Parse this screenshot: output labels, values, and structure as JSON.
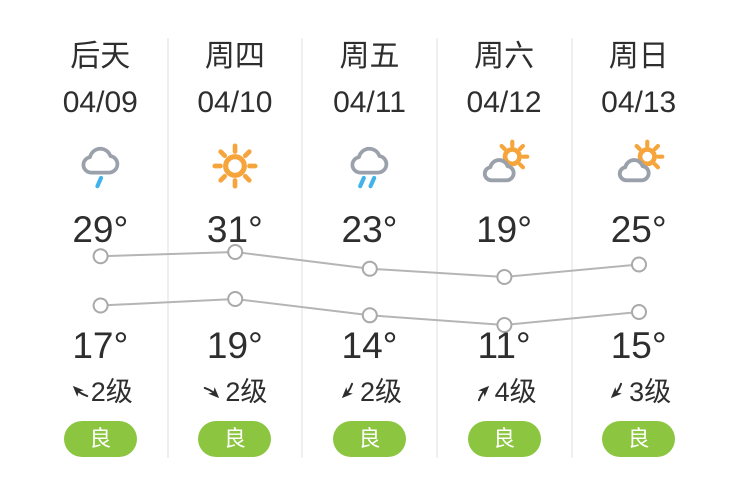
{
  "colors": {
    "page_bg": "#ffffff",
    "text": "#2e2e2e",
    "separator": "#efefef",
    "chart_line": "#b5b5b5",
    "chart_marker_stroke": "#a9a9a9",
    "chart_marker_fill": "#ffffff",
    "badge_green": "#8cc540",
    "badge_text": "#ffffff",
    "cloud_gray": "#9aa1ab",
    "sun_orange": "#f5a53b",
    "rain_blue": "#41b3ec"
  },
  "forecast": {
    "days": [
      {
        "name": "后天",
        "date": "04/09",
        "icon": "light-rain",
        "high": "29°",
        "low": "17°",
        "wind": {
          "level": "2级",
          "rotation": -45
        },
        "air": "良"
      },
      {
        "name": "周四",
        "date": "04/10",
        "icon": "sunny",
        "high": "31°",
        "low": "19°",
        "wind": {
          "level": "2级",
          "rotation": 135
        },
        "air": "良"
      },
      {
        "name": "周五",
        "date": "04/11",
        "icon": "rain",
        "high": "23°",
        "low": "14°",
        "wind": {
          "level": "2级",
          "rotation": 225
        },
        "air": "良"
      },
      {
        "name": "周六",
        "date": "04/12",
        "icon": "partly-cloudy",
        "high": "19°",
        "low": "11°",
        "wind": {
          "level": "4级",
          "rotation": 45
        },
        "air": "良"
      },
      {
        "name": "周日",
        "date": "04/13",
        "icon": "partly-cloudy",
        "high": "25°",
        "low": "15°",
        "wind": {
          "level": "3级",
          "rotation": 225
        },
        "air": "良"
      }
    ]
  },
  "chart_data": {
    "type": "line",
    "categories": [
      "04/09",
      "04/10",
      "04/11",
      "04/12",
      "04/13"
    ],
    "series": [
      {
        "name": "high-temperature",
        "values": [
          29,
          31,
          23,
          19,
          25
        ]
      },
      {
        "name": "low-temperature",
        "values": [
          17,
          19,
          14,
          11,
          15
        ]
      }
    ],
    "unit": "°",
    "marker": "open-circle",
    "grid": false,
    "legend": "none",
    "value_labels": "29°/31°/23°/19°/25° above high line, 17°/19°/14°/11°/15° below low line"
  }
}
